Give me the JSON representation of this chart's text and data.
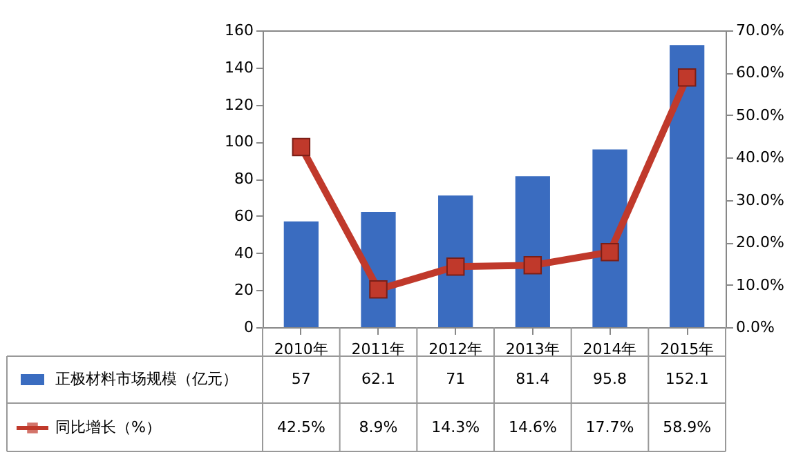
{
  "chart_data": {
    "type": "bar",
    "categories": [
      "2010年",
      "2011年",
      "2012年",
      "2013年",
      "2014年",
      "2015年"
    ],
    "series": [
      {
        "name": "正极材料市场规模（亿元）",
        "color": "#3a6cc0",
        "values": [
          57,
          62.1,
          71,
          81.4,
          95.8,
          152.1
        ],
        "value_labels": [
          "57",
          "62.1",
          "71",
          "81.4",
          "95.8",
          "152.1"
        ]
      },
      {
        "name": "同比增长（%）",
        "type": "line",
        "axis": "y2",
        "color": "#c0392b",
        "values": [
          42.5,
          8.9,
          14.3,
          14.6,
          17.7,
          58.9
        ],
        "value_labels": [
          "42.5%",
          "8.9%",
          "14.3%",
          "14.6%",
          "17.7%",
          "58.9%"
        ]
      }
    ],
    "ylim": [
      0,
      160
    ],
    "yticks": [
      0,
      20,
      40,
      60,
      80,
      100,
      120,
      140,
      160
    ],
    "y2lim": [
      0,
      70
    ],
    "y2ticks": [
      {
        "value": 0,
        "label": "0.0%"
      },
      {
        "value": 10,
        "label": "10.0%"
      },
      {
        "value": 20,
        "label": "20.0%"
      },
      {
        "value": 30,
        "label": "30.0%"
      },
      {
        "value": 40,
        "label": "40.0%"
      },
      {
        "value": 50,
        "label": "50.0%"
      },
      {
        "value": 60,
        "label": "60.0%"
      },
      {
        "value": 70,
        "label": "70.0%"
      }
    ],
    "marker": "square",
    "legend": "bottom"
  }
}
